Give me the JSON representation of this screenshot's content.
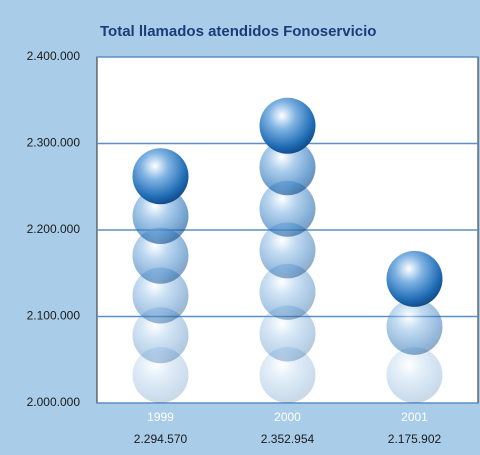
{
  "chart_data": {
    "type": "bar",
    "title": "Total llamados atendidos Fonoservicio",
    "categories": [
      "1999",
      "2000",
      "2001"
    ],
    "values": [
      2294570,
      2352954,
      2175902
    ],
    "value_labels": [
      "2.294.570",
      "2.352.954",
      "2.175.902"
    ],
    "color": "#1f6cb5",
    "ylim": [
      2000000,
      2400000
    ],
    "yticks": [
      {
        "value": 2000000,
        "label": "2.000.000"
      },
      {
        "value": 2100000,
        "label": "2.100.000"
      },
      {
        "value": 2200000,
        "label": "2.200.000"
      },
      {
        "value": 2300000,
        "label": "2.300.000"
      },
      {
        "value": 2400000,
        "label": "2.400.000"
      }
    ],
    "grid": true
  }
}
